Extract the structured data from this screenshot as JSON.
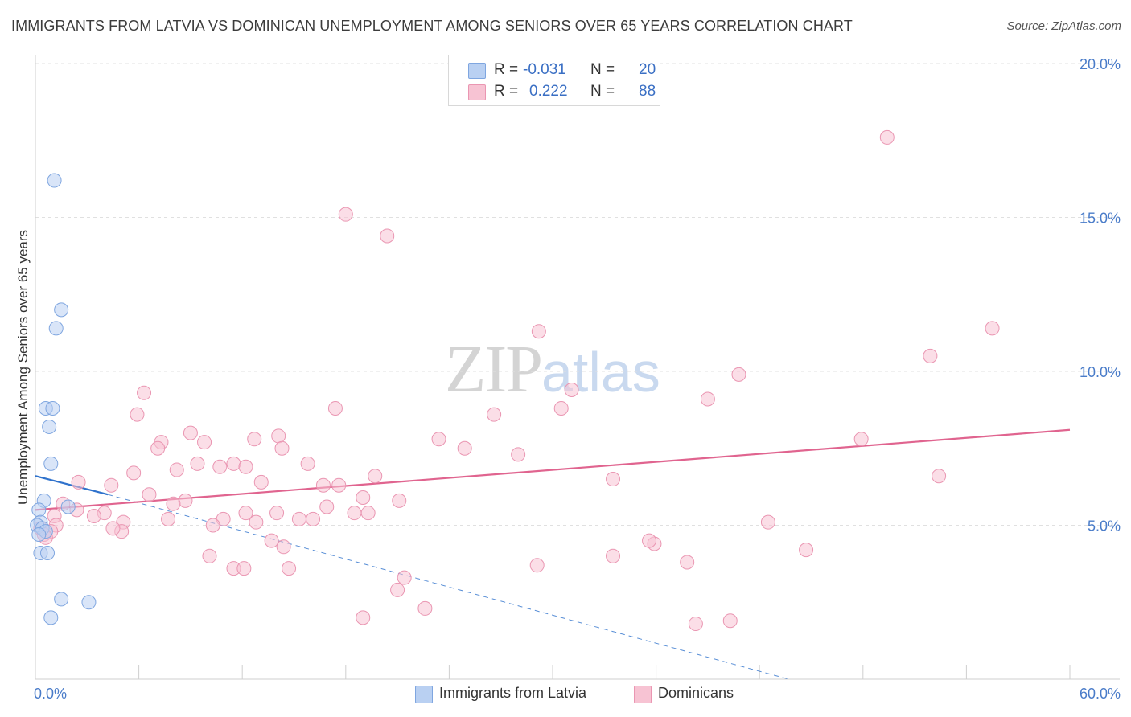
{
  "title": "IMMIGRANTS FROM LATVIA VS DOMINICAN UNEMPLOYMENT AMONG SENIORS OVER 65 YEARS CORRELATION CHART",
  "source": "Source: ZipAtlas.com",
  "watermark": {
    "zip": "ZIP",
    "atlas": "atlas"
  },
  "legend": {
    "rows": [
      {
        "r_label": "R =",
        "r_value": "-0.031",
        "n_label": "N =",
        "n_value": "20"
      },
      {
        "r_label": "R =",
        "r_value": "0.222",
        "n_label": "N =",
        "n_value": "88"
      }
    ]
  },
  "bottom_legend": {
    "series1": "Immigrants from Latvia",
    "series2": "Dominicans"
  },
  "colors": {
    "latvia_fill": "#b9d0f2",
    "latvia_stroke": "#7fa6e0",
    "latvia_line": "#2f72cc",
    "dominican_fill": "#f7c3d3",
    "dominican_stroke": "#ea96b2",
    "dominican_line": "#e0648f",
    "axis_text": "#4a7cc9",
    "grid": "#e0e0e0"
  },
  "chart_data": {
    "type": "scatter",
    "title": "IMMIGRANTS FROM LATVIA VS DOMINICAN UNEMPLOYMENT AMONG SENIORS OVER 65 YEARS CORRELATION CHART",
    "xlabel": "",
    "ylabel": "Unemployment Among Seniors over 65 years",
    "xlim": [
      0,
      60
    ],
    "ylim": [
      0,
      20
    ],
    "x_tick_labels": [
      "0.0%",
      "60.0%"
    ],
    "y_ticks": [
      5,
      10,
      15,
      20
    ],
    "y_tick_labels": [
      "5.0%",
      "10.0%",
      "15.0%",
      "20.0%"
    ],
    "grid": true,
    "legend_position": "top-center",
    "series": [
      {
        "name": "Immigrants from Latvia",
        "r": -0.031,
        "n": 20,
        "trend": {
          "x": [
            0.0,
            4.2
          ],
          "y": [
            6.6,
            6.0
          ]
        },
        "trend_extension": {
          "x": [
            4.2,
            43.7
          ],
          "y": [
            6.0,
            0.0
          ]
        },
        "points": [
          [
            1.1,
            16.2
          ],
          [
            1.5,
            12.0
          ],
          [
            1.2,
            11.4
          ],
          [
            0.6,
            8.8
          ],
          [
            1.0,
            8.8
          ],
          [
            0.8,
            8.2
          ],
          [
            0.9,
            7.0
          ],
          [
            0.5,
            5.8
          ],
          [
            0.2,
            5.5
          ],
          [
            1.9,
            5.6
          ],
          [
            0.3,
            5.1
          ],
          [
            0.1,
            5.0
          ],
          [
            0.4,
            4.9
          ],
          [
            0.6,
            4.8
          ],
          [
            0.2,
            4.7
          ],
          [
            0.3,
            4.1
          ],
          [
            0.7,
            4.1
          ],
          [
            1.5,
            2.6
          ],
          [
            3.1,
            2.5
          ],
          [
            0.9,
            2.0
          ]
        ]
      },
      {
        "name": "Dominicans",
        "r": 0.222,
        "n": 88,
        "trend": {
          "x": [
            0.0,
            60.0
          ],
          "y": [
            5.5,
            8.1
          ]
        },
        "points": [
          [
            49.4,
            17.6
          ],
          [
            18.0,
            15.1
          ],
          [
            20.4,
            14.4
          ],
          [
            55.5,
            11.4
          ],
          [
            29.2,
            11.3
          ],
          [
            51.9,
            10.5
          ],
          [
            40.8,
            9.9
          ],
          [
            31.1,
            9.4
          ],
          [
            6.3,
            9.3
          ],
          [
            39.0,
            9.1
          ],
          [
            17.4,
            8.8
          ],
          [
            26.6,
            8.6
          ],
          [
            30.5,
            8.8
          ],
          [
            5.9,
            8.6
          ],
          [
            9.0,
            8.0
          ],
          [
            14.1,
            7.9
          ],
          [
            23.4,
            7.8
          ],
          [
            12.7,
            7.8
          ],
          [
            47.9,
            7.8
          ],
          [
            9.8,
            7.7
          ],
          [
            7.3,
            7.7
          ],
          [
            14.3,
            7.5
          ],
          [
            24.9,
            7.5
          ],
          [
            7.1,
            7.5
          ],
          [
            28.0,
            7.3
          ],
          [
            15.8,
            7.0
          ],
          [
            11.5,
            7.0
          ],
          [
            9.4,
            7.0
          ],
          [
            10.7,
            6.9
          ],
          [
            12.2,
            6.9
          ],
          [
            8.2,
            6.8
          ],
          [
            5.7,
            6.7
          ],
          [
            19.7,
            6.6
          ],
          [
            33.5,
            6.5
          ],
          [
            52.4,
            6.6
          ],
          [
            2.5,
            6.4
          ],
          [
            13.1,
            6.4
          ],
          [
            17.6,
            6.3
          ],
          [
            16.7,
            6.3
          ],
          [
            4.4,
            6.3
          ],
          [
            6.6,
            6.0
          ],
          [
            8.7,
            5.8
          ],
          [
            19.0,
            5.9
          ],
          [
            8.0,
            5.7
          ],
          [
            21.1,
            5.8
          ],
          [
            1.6,
            5.7
          ],
          [
            16.9,
            5.6
          ],
          [
            2.4,
            5.5
          ],
          [
            4.0,
            5.4
          ],
          [
            12.2,
            5.4
          ],
          [
            14.0,
            5.4
          ],
          [
            19.3,
            5.4
          ],
          [
            18.5,
            5.4
          ],
          [
            1.1,
            5.3
          ],
          [
            3.4,
            5.3
          ],
          [
            15.3,
            5.2
          ],
          [
            16.1,
            5.2
          ],
          [
            7.7,
            5.2
          ],
          [
            10.9,
            5.2
          ],
          [
            12.8,
            5.1
          ],
          [
            5.1,
            5.1
          ],
          [
            42.5,
            5.1
          ],
          [
            10.3,
            5.0
          ],
          [
            1.2,
            5.0
          ],
          [
            0.3,
            4.9
          ],
          [
            0.9,
            4.8
          ],
          [
            5.0,
            4.8
          ],
          [
            0.5,
            4.7
          ],
          [
            0.6,
            4.6
          ],
          [
            4.5,
            4.9
          ],
          [
            13.7,
            4.5
          ],
          [
            35.9,
            4.4
          ],
          [
            35.6,
            4.5
          ],
          [
            14.4,
            4.3
          ],
          [
            44.7,
            4.2
          ],
          [
            10.1,
            4.0
          ],
          [
            33.5,
            4.0
          ],
          [
            37.8,
            3.8
          ],
          [
            29.1,
            3.7
          ],
          [
            11.5,
            3.6
          ],
          [
            12.1,
            3.6
          ],
          [
            14.7,
            3.6
          ],
          [
            21.4,
            3.3
          ],
          [
            21.0,
            2.9
          ],
          [
            22.6,
            2.3
          ],
          [
            19.0,
            2.0
          ],
          [
            38.3,
            1.8
          ],
          [
            40.3,
            1.9
          ]
        ]
      }
    ]
  }
}
